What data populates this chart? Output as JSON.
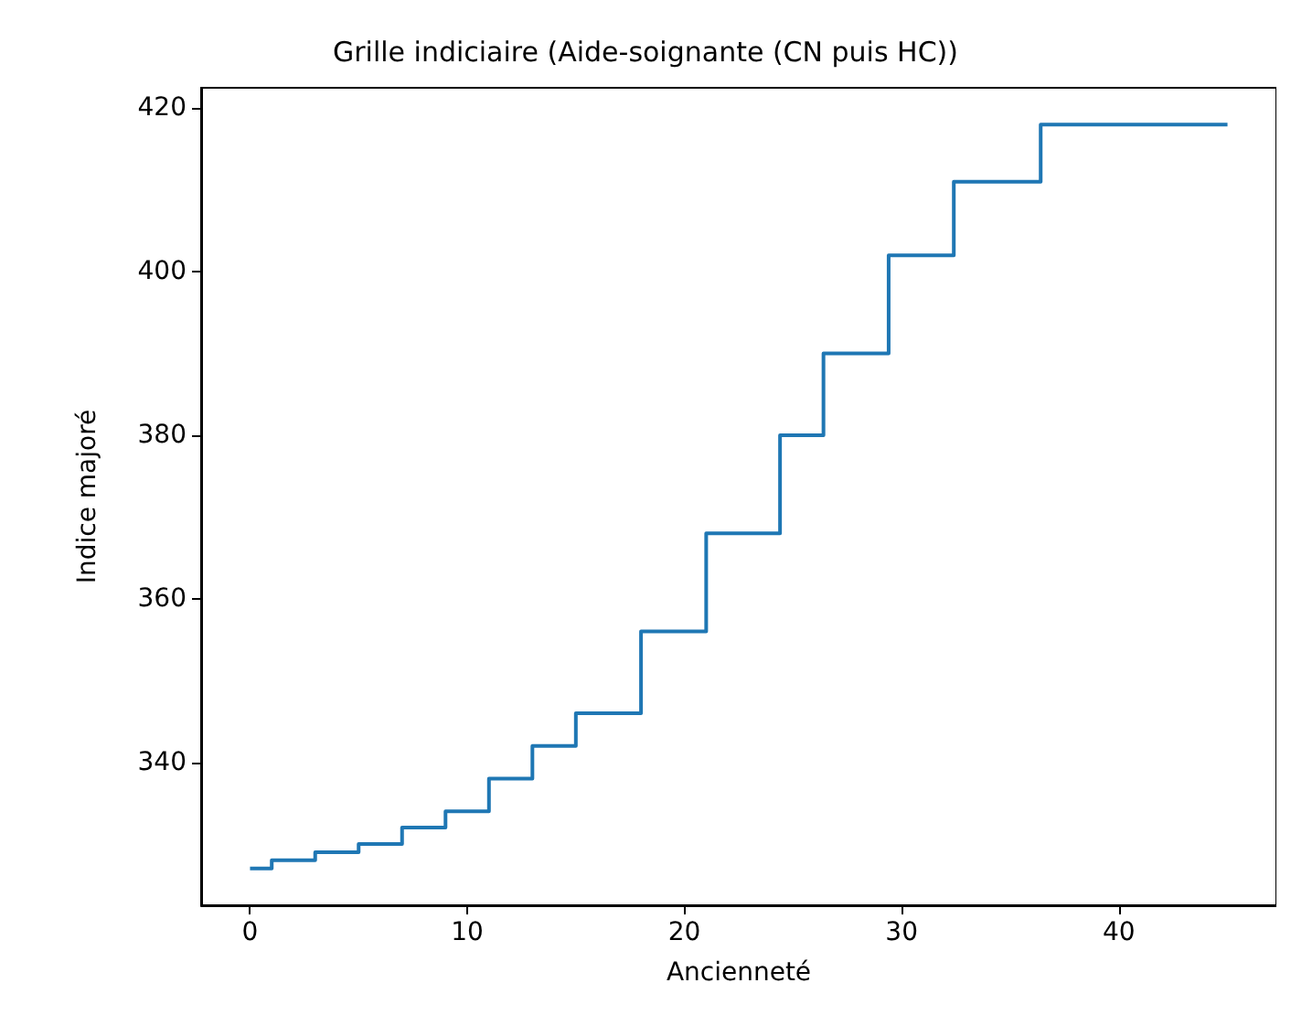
{
  "chart_data": {
    "type": "step",
    "title": "Grille indiciaire (Aide-soignante (CN puis HC))",
    "xlabel": "Ancienneté",
    "ylabel": "Indice majoré",
    "x": [
      0,
      1,
      3,
      5,
      7,
      9,
      11,
      13,
      15,
      18,
      21,
      24.4,
      26.4,
      29.4,
      32.4,
      36.4,
      45
    ],
    "series": [
      {
        "color": "#1f77b4",
        "values": [
          327,
          328,
          329,
          330,
          332,
          334,
          338,
          342,
          346,
          356,
          368,
          380,
          390,
          402,
          411,
          418,
          418
        ]
      }
    ],
    "xlim": [
      -2.25,
      47.25
    ],
    "ylim": [
      322.5,
      422.5
    ],
    "xticks": [
      0,
      10,
      20,
      30,
      40
    ],
    "yticks": [
      340,
      360,
      380,
      400,
      420
    ],
    "grid": false
  }
}
